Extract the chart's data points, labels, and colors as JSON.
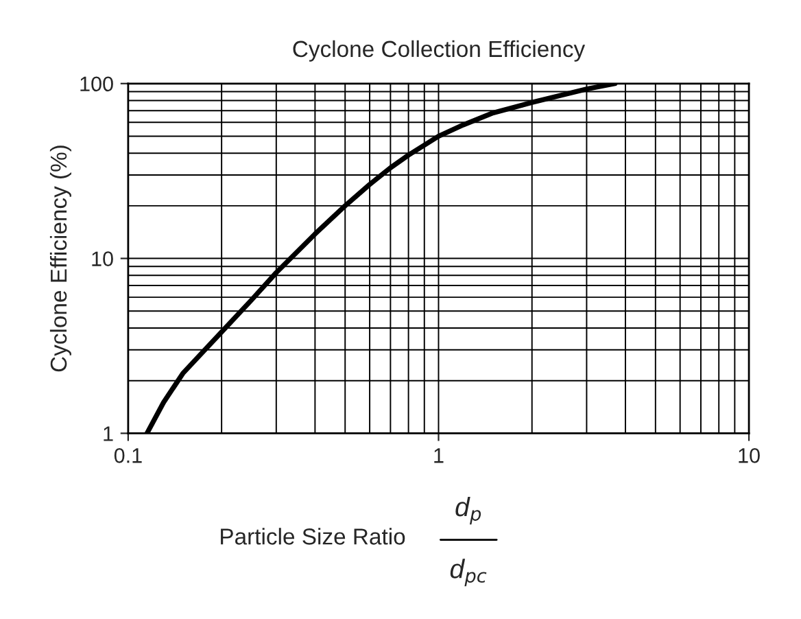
{
  "chart_data": {
    "type": "line",
    "title": "Cyclone Collection Efficiency",
    "xlabel": "Particle Size Ratio",
    "ylabel": "Cyclone Efficiency (%)",
    "annotations": [
      "d$_{p}$",
      "d$_{pc}$"
    ],
    "x": [
      0.115,
      0.13,
      0.15,
      0.2,
      0.25,
      0.3,
      0.4,
      0.5,
      0.6,
      0.7,
      0.8,
      1,
      1.2,
      1.5,
      2,
      2.5,
      3,
      3.7
    ],
    "series": [
      {
        "color": "#000000",
        "values": [
          1,
          1.5,
          2.2,
          3.8,
          5.8,
          8.3,
          13.8,
          20,
          26.5,
          33,
          39,
          50,
          58,
          68,
          78,
          86,
          93,
          100
        ]
      }
    ],
    "log": "xy",
    "xlim": [
      0.1,
      10
    ],
    "ylim": [
      1,
      100
    ],
    "xticks": [
      0.1,
      1,
      10
    ],
    "yticks": [
      1,
      10,
      100
    ],
    "grid": true
  }
}
